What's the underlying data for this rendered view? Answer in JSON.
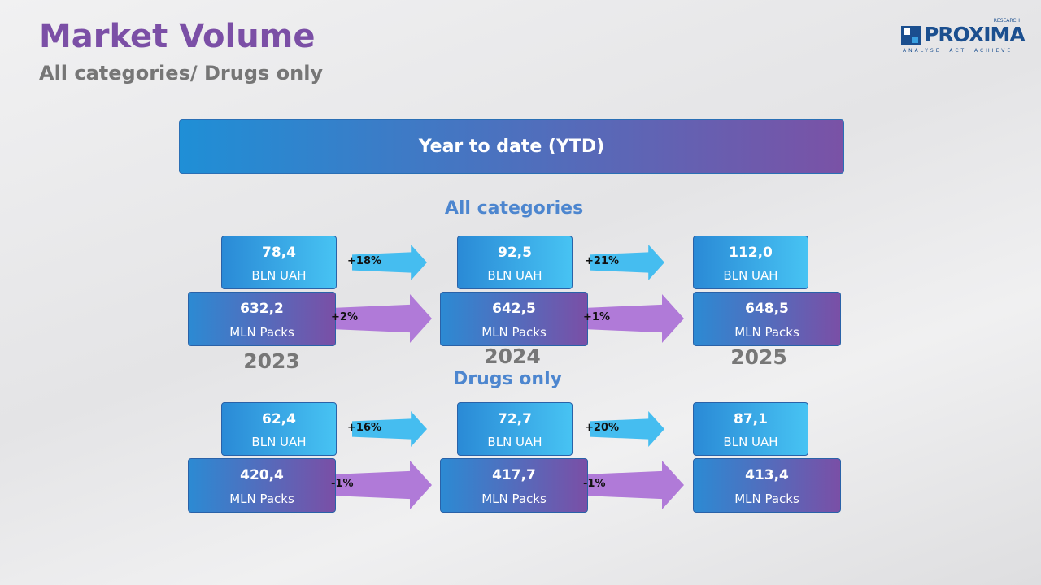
{
  "header": {
    "title": "Market Volume",
    "subtitle": "All categories/ Drugs only"
  },
  "logo": {
    "name": "PROXIMA",
    "tag": "RESEARCH",
    "motto": "ANALYSE  ACT  ACHIEVE"
  },
  "banner": "Year to date (YTD)",
  "years": [
    "2023",
    "2024",
    "2025"
  ],
  "sections": [
    {
      "title": "All categories",
      "uah": [
        {
          "value": "78,4",
          "unit": "BLN UAH"
        },
        {
          "value": "92,5",
          "unit": "BLN UAH"
        },
        {
          "value": "112,0",
          "unit": "BLN UAH"
        }
      ],
      "uah_changes": [
        "+18%",
        "+21%"
      ],
      "packs": [
        {
          "value": "632,2",
          "unit": "MLN Packs"
        },
        {
          "value": "642,5",
          "unit": "MLN Packs"
        },
        {
          "value": "648,5",
          "unit": "MLN Packs"
        }
      ],
      "packs_changes": [
        "+2%",
        "+1%"
      ]
    },
    {
      "title": "Drugs only",
      "uah": [
        {
          "value": "62,4",
          "unit": "BLN UAH"
        },
        {
          "value": "72,7",
          "unit": "BLN UAH"
        },
        {
          "value": "87,1",
          "unit": "BLN UAH"
        }
      ],
      "uah_changes": [
        "+16%",
        "+20%"
      ],
      "packs": [
        {
          "value": "420,4",
          "unit": "MLN Packs"
        },
        {
          "value": "417,7",
          "unit": "MLN Packs"
        },
        {
          "value": "413,4",
          "unit": "MLN Packs"
        }
      ],
      "packs_changes": [
        "-1%",
        "-1%"
      ]
    }
  ]
}
